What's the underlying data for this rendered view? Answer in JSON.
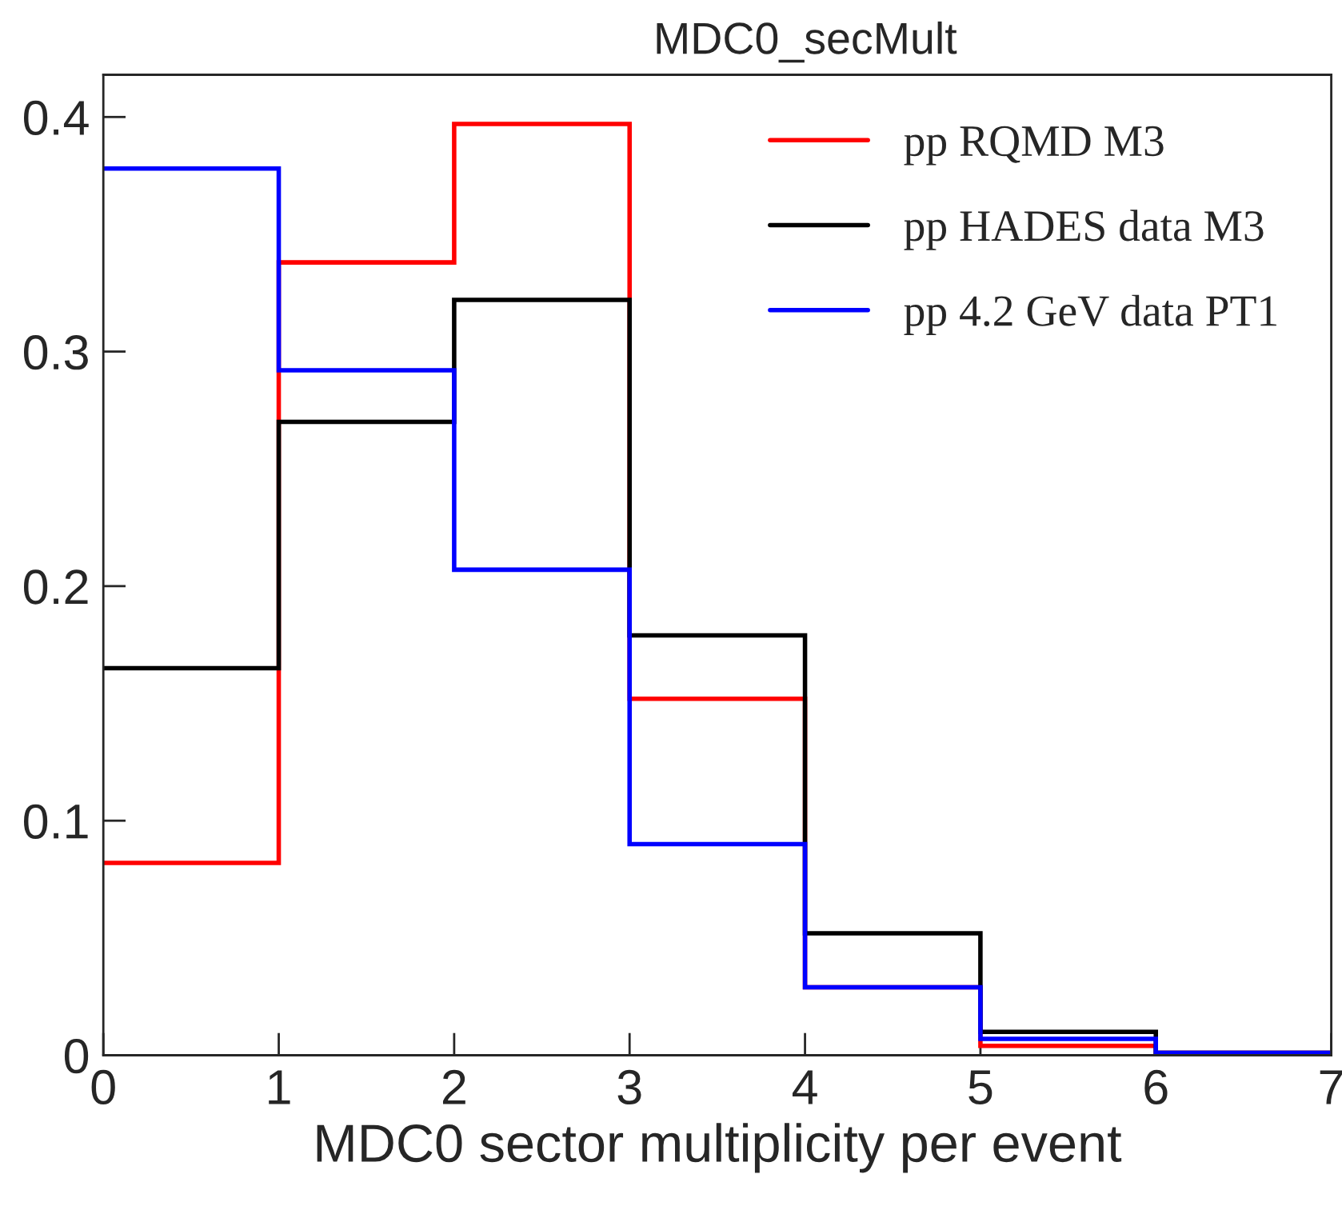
{
  "chart_data": {
    "type": "histogram",
    "title": "MDC0_secMult",
    "xlabel": "MDC0 sector multiplicity per event",
    "bins": [
      0,
      1,
      2,
      3,
      4,
      5,
      6,
      7
    ],
    "series": [
      {
        "name": "pp RQMD M3",
        "color": "#ff0000",
        "values": [
          0.082,
          0.338,
          0.397,
          0.152,
          0.029,
          0.004,
          0.001
        ]
      },
      {
        "name": "pp HADES data M3",
        "color": "#000000",
        "values": [
          0.165,
          0.27,
          0.322,
          0.179,
          0.052,
          0.01,
          0.001
        ]
      },
      {
        "name": "pp 4.2 GeV data PT1",
        "color": "#0000ff",
        "values": [
          0.378,
          0.292,
          0.207,
          0.09,
          0.029,
          0.007,
          0.001
        ]
      }
    ],
    "xlim": [
      0,
      7
    ],
    "xticks": [
      0,
      1,
      2,
      3,
      4,
      5,
      6,
      7
    ],
    "ylim": [
      0,
      0.418
    ],
    "yticks": [
      {
        "value": 0,
        "label": "0"
      },
      0.1,
      0.2,
      0.3,
      0.4
    ],
    "grid": false,
    "legend": "top right",
    "line_style": "solid"
  }
}
